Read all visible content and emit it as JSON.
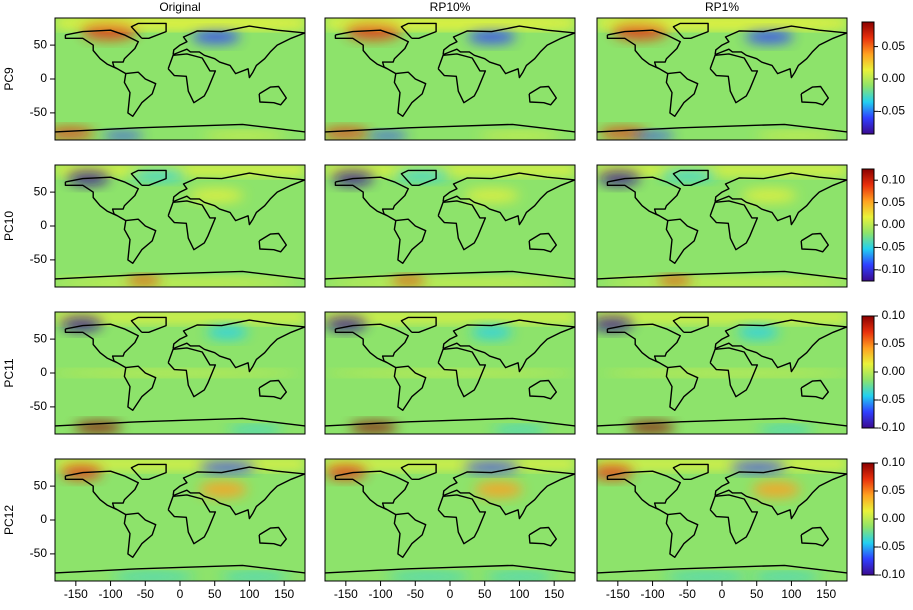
{
  "chart_data": {
    "type": "map",
    "columns": [
      "Original",
      "RP10%",
      "RP1%"
    ],
    "xlim": [
      -180,
      180
    ],
    "xticks": [
      -150,
      -100,
      -50,
      0,
      50,
      100,
      150
    ],
    "ylim": [
      -90,
      90
    ],
    "yticks": [
      -50,
      0,
      50
    ],
    "colormap": [
      "#3b0a8f",
      "#2f3fff",
      "#22d0f0",
      "#8de36b",
      "#e9f23a",
      "#ffa020",
      "#e8300c",
      "#8a0000"
    ],
    "rows": [
      {
        "name": "PC9",
        "clim": [
          -0.085,
          0.088
        ],
        "cticks": [
          -0.05,
          {
            "value": 0,
            "label": "0.00"
          },
          0.05
        ]
      },
      {
        "name": "PC10",
        "clim": [
          -0.125,
          0.125
        ],
        "cticks": [
          {
            "value": -0.1,
            "label": "-0.10"
          },
          -0.05,
          {
            "value": 0,
            "label": "0.00"
          },
          0.05,
          {
            "value": 0.1,
            "label": "0.10"
          }
        ]
      },
      {
        "name": "PC11",
        "clim": [
          -0.1,
          0.1
        ],
        "cticks": [
          {
            "value": -0.1,
            "label": "-0.10"
          },
          -0.05,
          {
            "value": 0,
            "label": "0.00"
          },
          0.05,
          {
            "value": 0.1,
            "label": "0.10"
          }
        ]
      },
      {
        "name": "PC12",
        "clim": [
          -0.1,
          0.1
        ],
        "cticks": [
          {
            "value": -0.1,
            "label": "-0.10"
          },
          -0.05,
          {
            "value": 0,
            "label": "0.00"
          },
          0.05,
          {
            "value": 0.1,
            "label": "0.10"
          }
        ]
      }
    ]
  }
}
